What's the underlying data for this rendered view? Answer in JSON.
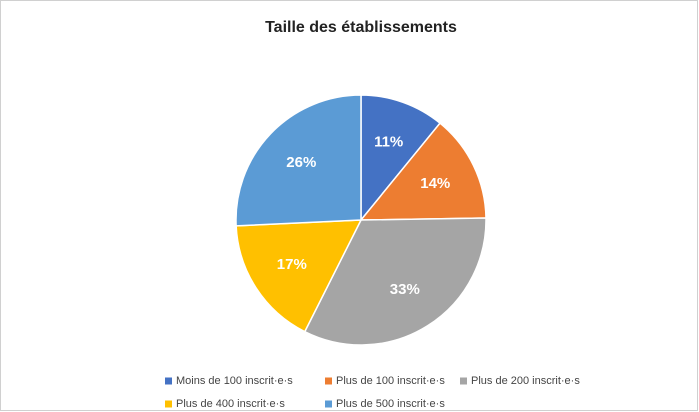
{
  "chart_data": {
    "type": "pie",
    "title": "Taille des établissements",
    "categories": [
      "Moins de 100 inscrit·e·s",
      "Plus de 100 inscrit·e·s",
      "Plus de 200 inscrit·e·s",
      "Plus de 400 inscrit·e·s",
      "Plus de 500 inscrit·e·s"
    ],
    "values": [
      11,
      14,
      33,
      17,
      26
    ],
    "value_labels": [
      "11%",
      "14%",
      "33%",
      "17%",
      "26%"
    ],
    "colors": [
      "#4472c4",
      "#ed7d31",
      "#a5a5a5",
      "#ffc000",
      "#5b9bd5"
    ],
    "legend": "bottom"
  }
}
